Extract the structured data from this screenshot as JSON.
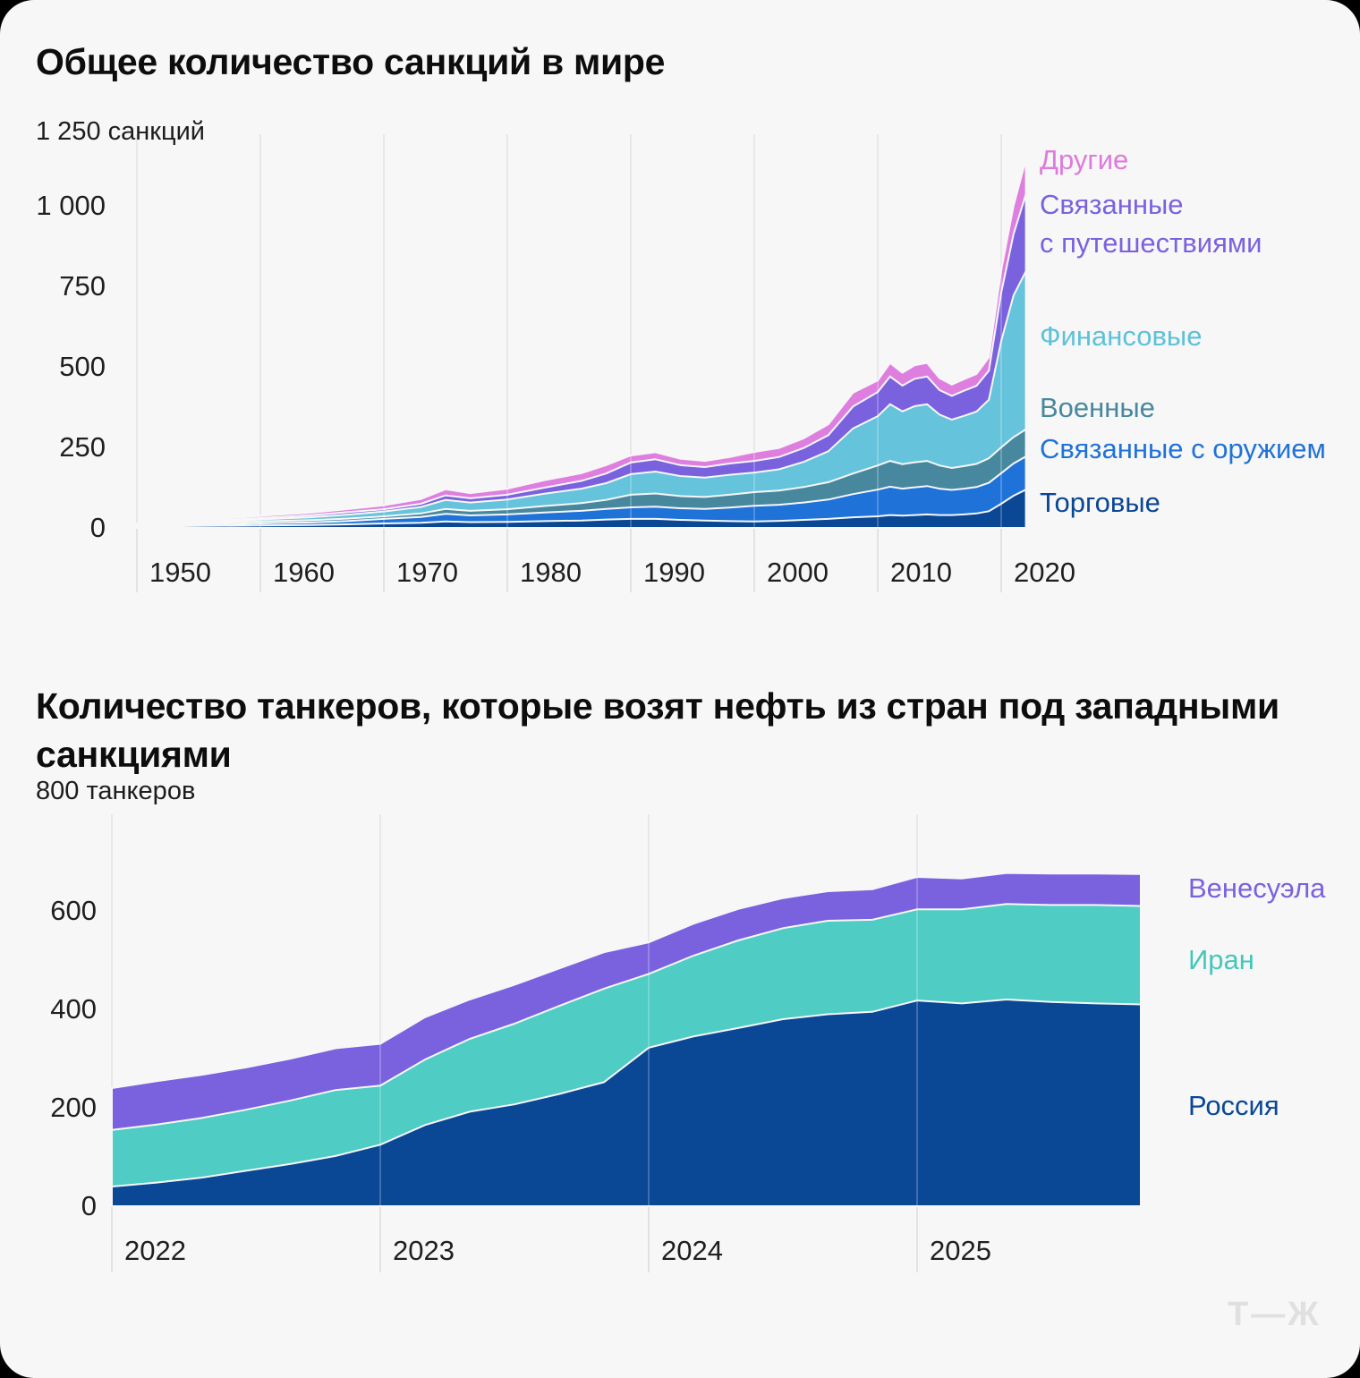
{
  "logo": "Т—Ж",
  "chart_data": [
    {
      "type": "area",
      "stacked": true,
      "title": "Общее количество санкций в мире",
      "y_axis": {
        "top_label": "1 250 санкций",
        "ticks": [
          {
            "value": 1000,
            "label": "1 000"
          },
          {
            "value": 750,
            "label": "750"
          },
          {
            "value": 500,
            "label": "500"
          },
          {
            "value": 250,
            "label": "250"
          },
          {
            "value": 0,
            "label": "0"
          }
        ],
        "ylim": [
          0,
          1250
        ],
        "grid": "vertical-only"
      },
      "x_ticks": [
        {
          "value": 1950,
          "label": "1950"
        },
        {
          "value": 1960,
          "label": "1960"
        },
        {
          "value": 1970,
          "label": "1970"
        },
        {
          "value": 1980,
          "label": "1980"
        },
        {
          "value": 1990,
          "label": "1990"
        },
        {
          "value": 2000,
          "label": "2000"
        },
        {
          "value": 2010,
          "label": "2010"
        },
        {
          "value": 2020,
          "label": "2020"
        }
      ],
      "x": [
        1949,
        1952,
        1955,
        1958,
        1961,
        1964,
        1967,
        1970,
        1973,
        1975,
        1977,
        1980,
        1983,
        1986,
        1988,
        1990,
        1992,
        1994,
        1996,
        1998,
        2000,
        2002,
        2004,
        2006,
        2008,
        2010,
        2011,
        2012,
        2013,
        2014,
        2015,
        2016,
        2017,
        2018,
        2019,
        2020,
        2021,
        2022
      ],
      "series": [
        {
          "name": "Торговые",
          "color": "#0a4795",
          "values": [
            2,
            5,
            6,
            7,
            8,
            9,
            11,
            14,
            16,
            20,
            18,
            19,
            21,
            23,
            26,
            28,
            28,
            25,
            23,
            21,
            20,
            22,
            25,
            28,
            33,
            36,
            40,
            38,
            40,
            42,
            40,
            40,
            42,
            45,
            52,
            75,
            100,
            119
          ]
        },
        {
          "name": "Связанные с оружием",
          "color": "#1f72d8",
          "values": [
            2,
            4,
            5,
            5,
            7,
            8,
            10,
            14,
            18,
            24,
            21,
            23,
            27,
            30,
            33,
            36,
            38,
            36,
            36,
            42,
            49,
            50,
            54,
            60,
            72,
            83,
            88,
            84,
            86,
            88,
            82,
            78,
            80,
            82,
            88,
            95,
            100,
            103
          ]
        },
        {
          "name": "Военные",
          "color": "#47889f",
          "values": [
            1,
            3,
            4,
            5,
            6,
            7,
            8,
            8,
            11,
            15,
            14,
            16,
            20,
            24,
            28,
            39,
            41,
            38,
            37,
            40,
            42,
            44,
            48,
            54,
            64,
            75,
            80,
            76,
            78,
            78,
            72,
            68,
            70,
            72,
            76,
            80,
            82,
            84
          ]
        },
        {
          "name": "Финансовые",
          "color": "#66c3dc",
          "values": [
            1,
            3,
            4,
            5,
            7,
            9,
            12,
            15,
            20,
            28,
            26,
            30,
            38,
            45,
            52,
            64,
            68,
            62,
            60,
            62,
            61,
            66,
            78,
            96,
            140,
            153,
            176,
            164,
            174,
            176,
            158,
            150,
            156,
            162,
            182,
            330,
            440,
            491
          ]
        },
        {
          "name": "Связанные с путешествиями",
          "color": "#7a62de",
          "values": [
            1,
            2,
            3,
            4,
            5,
            6,
            8,
            7,
            10,
            14,
            13,
            15,
            19,
            24,
            30,
            36,
            38,
            34,
            33,
            35,
            36,
            38,
            43,
            50,
            68,
            75,
            86,
            80,
            85,
            86,
            76,
            74,
            78,
            80,
            90,
            150,
            190,
            239
          ]
        },
        {
          "name": "Другие",
          "color": "#de7fdf",
          "values": [
            1,
            3,
            4,
            5,
            7,
            8,
            9,
            12,
            15,
            19,
            16,
            19,
            23,
            24,
            26,
            22,
            22,
            20,
            19,
            20,
            28,
            28,
            30,
            34,
            43,
            36,
            42,
            40,
            42,
            42,
            37,
            35,
            36,
            37,
            42,
            70,
            88,
            108
          ]
        }
      ],
      "legend": [
        {
          "label": "Другие",
          "color": "#de7add"
        },
        {
          "label": "Связанные\nс путешествиями",
          "color": "#7a62de"
        },
        {
          "label": "Финансовые",
          "color": "#5ec1d9"
        },
        {
          "label": "Военные",
          "color": "#47889f"
        },
        {
          "label": "Связанные с оружием",
          "color": "#1f72d8"
        },
        {
          "label": "Торговые",
          "color": "#0a4795"
        }
      ],
      "legend_position": "right"
    },
    {
      "type": "area",
      "stacked": true,
      "title": "Количество танкеров, которые возят нефть из стран под западными санкциями",
      "y_axis": {
        "top_label": "800 танкеров",
        "ticks": [
          {
            "value": 600,
            "label": "600"
          },
          {
            "value": 400,
            "label": "400"
          },
          {
            "value": 200,
            "label": "200"
          },
          {
            "value": 0,
            "label": "0"
          }
        ],
        "ylim": [
          0,
          800
        ],
        "grid": "vertical-only"
      },
      "x_ticks": [
        {
          "value": "2022",
          "label": "2022"
        },
        {
          "value": "2023",
          "label": "2023"
        },
        {
          "value": "2024",
          "label": "2024"
        },
        {
          "value": "2025",
          "label": "2025"
        }
      ],
      "x": [
        "2022-01",
        "2022-03",
        "2022-05",
        "2022-07",
        "2022-09",
        "2022-11",
        "2023-01",
        "2023-03",
        "2023-05",
        "2023-07",
        "2023-09",
        "2023-11",
        "2024-01",
        "2024-03",
        "2024-05",
        "2024-07",
        "2024-09",
        "2024-11",
        "2025-01",
        "2025-03",
        "2025-05",
        "2025-07",
        "2025-09",
        "2025-11"
      ],
      "series": [
        {
          "name": "Россия",
          "color": "#0a4795",
          "values": [
            40,
            48,
            58,
            72,
            86,
            102,
            125,
            165,
            192,
            207,
            228,
            252,
            322,
            345,
            362,
            380,
            390,
            395,
            418,
            412,
            420,
            415,
            412,
            410
          ]
        },
        {
          "name": "Иран",
          "color": "#4fccc4",
          "values": [
            115,
            118,
            121,
            124,
            129,
            134,
            120,
            133,
            148,
            164,
            179,
            190,
            150,
            164,
            178,
            185,
            190,
            187,
            185,
            191,
            194,
            197,
            200,
            200
          ]
        },
        {
          "name": "Венесуэла",
          "color": "#7a62de",
          "values": [
            85,
            88,
            88,
            86,
            85,
            85,
            85,
            86,
            80,
            79,
            76,
            74,
            64,
            65,
            64,
            61,
            60,
            62,
            66,
            63,
            63,
            64,
            64,
            65
          ]
        }
      ],
      "legend": [
        {
          "label": "Венесуэла",
          "color": "#7a62de"
        },
        {
          "label": "Иран",
          "color": "#45c7bb"
        },
        {
          "label": "Россия",
          "color": "#0a4795"
        }
      ],
      "legend_position": "right"
    }
  ]
}
